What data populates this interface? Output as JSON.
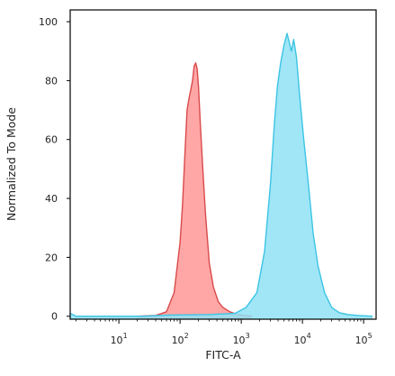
{
  "chart_data": {
    "type": "area",
    "xlabel": "FITC-A",
    "ylabel": "Normalized To Mode",
    "xscale": "log",
    "xlim": [
      1.6,
      160000
    ],
    "ylim": [
      -1,
      104
    ],
    "grid": false,
    "x_ticks": [
      {
        "value": 10,
        "base": "10",
        "exp": "1"
      },
      {
        "value": 100,
        "base": "10",
        "exp": "2"
      },
      {
        "value": 1000,
        "base": "10",
        "exp": "3"
      },
      {
        "value": 10000,
        "base": "10",
        "exp": "4"
      },
      {
        "value": 100000,
        "base": "10",
        "exp": "5"
      }
    ],
    "y_ticks": [
      0,
      20,
      40,
      60,
      80,
      100
    ],
    "series": [
      {
        "color": "#ff8a8a",
        "fill_opacity": 0.75,
        "edge_color": "#d94a4a",
        "points": [
          [
            20,
            0
          ],
          [
            40,
            0.3
          ],
          [
            60,
            1.5
          ],
          [
            80,
            8
          ],
          [
            100,
            25
          ],
          [
            110,
            38
          ],
          [
            120,
            55
          ],
          [
            130,
            70
          ],
          [
            140,
            74
          ],
          [
            150,
            77
          ],
          [
            160,
            80
          ],
          [
            170,
            85
          ],
          [
            180,
            86
          ],
          [
            190,
            84
          ],
          [
            200,
            78
          ],
          [
            215,
            65
          ],
          [
            235,
            50
          ],
          [
            260,
            35
          ],
          [
            300,
            18
          ],
          [
            350,
            10
          ],
          [
            420,
            5
          ],
          [
            500,
            3
          ],
          [
            650,
            1.5
          ],
          [
            900,
            0.5
          ],
          [
            1500,
            0
          ]
        ]
      },
      {
        "color": "#8fe2f5",
        "fill_opacity": 0.85,
        "edge_color": "#3cc4e4",
        "points": [
          [
            1.6,
            1
          ],
          [
            2,
            0
          ],
          [
            25,
            0
          ],
          [
            60,
            0.4
          ],
          [
            300,
            0.6
          ],
          [
            800,
            1
          ],
          [
            1200,
            3
          ],
          [
            1800,
            8
          ],
          [
            2400,
            22
          ],
          [
            3000,
            45
          ],
          [
            3500,
            66
          ],
          [
            3900,
            78
          ],
          [
            4400,
            86
          ],
          [
            5000,
            92
          ],
          [
            5600,
            96
          ],
          [
            6100,
            93
          ],
          [
            6600,
            90
          ],
          [
            7200,
            94
          ],
          [
            8000,
            88
          ],
          [
            9000,
            75
          ],
          [
            10500,
            60
          ],
          [
            12500,
            45
          ],
          [
            15000,
            28
          ],
          [
            18000,
            17
          ],
          [
            23000,
            8
          ],
          [
            30000,
            3
          ],
          [
            40000,
            1.2
          ],
          [
            55000,
            0.6
          ],
          [
            80000,
            0.3
          ],
          [
            140000,
            0
          ]
        ]
      }
    ]
  }
}
